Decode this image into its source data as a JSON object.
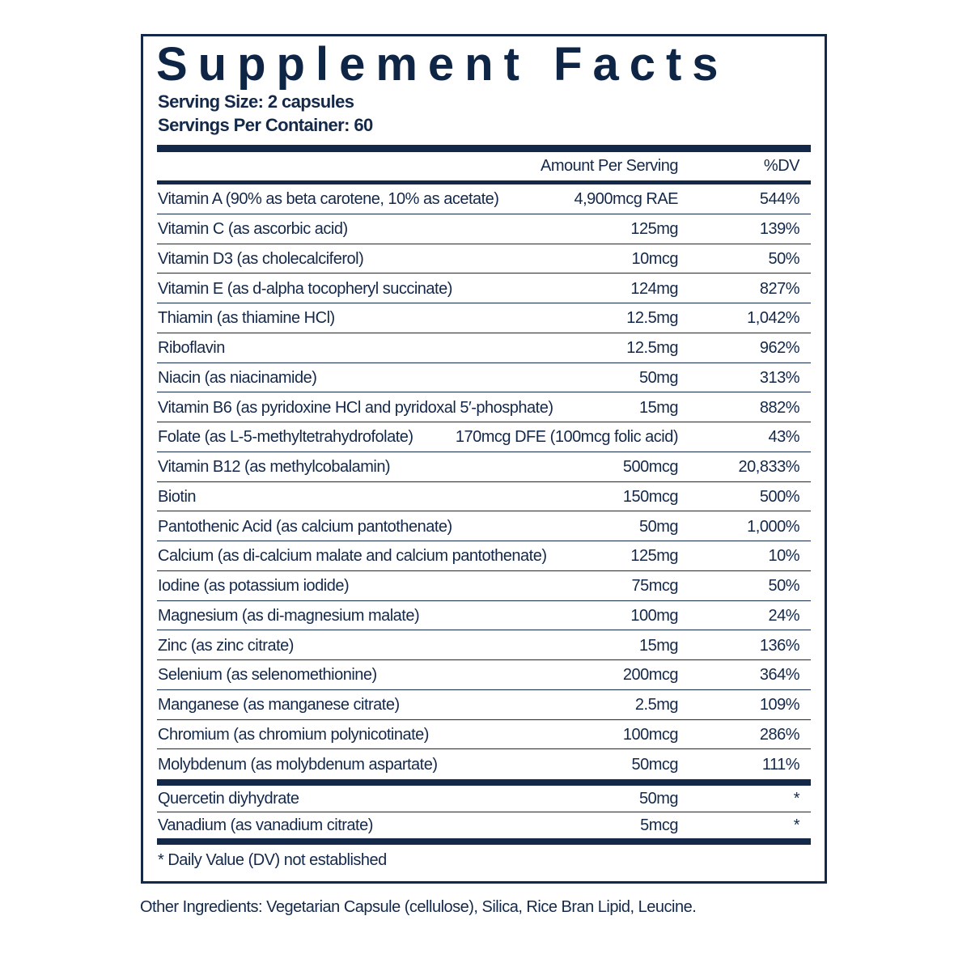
{
  "header": {
    "title": "Supplement Facts",
    "serving_size": "Serving Size: 2 capsules",
    "servings_per_container": "Servings Per Container: 60"
  },
  "table": {
    "columns": [
      "Amount Per Serving",
      "%DV"
    ],
    "rows": [
      [
        "Vitamin A (90% as beta carotene, 10% as acetate)",
        "4,900mcg RAE",
        "544%"
      ],
      [
        "Vitamin C (as ascorbic acid)",
        "125mg",
        "139%"
      ],
      [
        "Vitamin D3 (as cholecalciferol)",
        "10mcg",
        "50%"
      ],
      [
        "Vitamin E (as d-alpha tocopheryl succinate)",
        "124mg",
        "827%"
      ],
      [
        "Thiamin (as thiamine HCl)",
        "12.5mg",
        "1,042%"
      ],
      [
        "Riboflavin",
        "12.5mg",
        "962%"
      ],
      [
        "Niacin (as niacinamide)",
        "50mg",
        "313%"
      ],
      [
        "Vitamin B6 (as pyridoxine HCl and pyridoxal 5′-phosphate)",
        "15mg",
        "882%"
      ],
      [
        "Folate (as L-5-methyltetrahydrofolate)",
        "170mcg DFE (100mcg folic acid)",
        "43%"
      ],
      [
        "Vitamin B12 (as methylcobalamin)",
        "500mcg",
        "20,833%"
      ],
      [
        "Biotin",
        "150mcg",
        "500%"
      ],
      [
        "Pantothenic Acid (as calcium pantothenate)",
        "50mg",
        "1,000%"
      ],
      [
        "Calcium (as di-calcium malate and calcium pantothenate)",
        "125mg",
        "10%"
      ],
      [
        "Iodine (as potassium iodide)",
        "75mcg",
        "50%"
      ],
      [
        "Magnesium (as di-magnesium malate)",
        "100mg",
        "24%"
      ],
      [
        "Zinc (as zinc citrate)",
        "15mg",
        "136%"
      ],
      [
        "Selenium (as selenomethionine)",
        "200mcg",
        "364%"
      ],
      [
        "Manganese (as manganese citrate)",
        "2.5mg",
        "109%"
      ],
      [
        "Chromium (as chromium polynicotinate)",
        "100mcg",
        "286%"
      ],
      [
        "Molybdenum (as molybdenum aspartate)",
        "50mcg",
        "111%"
      ]
    ],
    "other_rows": [
      [
        "Quercetin diyhydrate",
        "50mg",
        "*"
      ],
      [
        "Vanadium (as vanadium citrate)",
        "5mcg",
        "*"
      ]
    ]
  },
  "footnote": "* Daily Value (DV) not established",
  "other_ingredients": "Other Ingredients: Vegetarian Capsule (cellulose), Silica, Rice Bran Lipid, Leucine."
}
